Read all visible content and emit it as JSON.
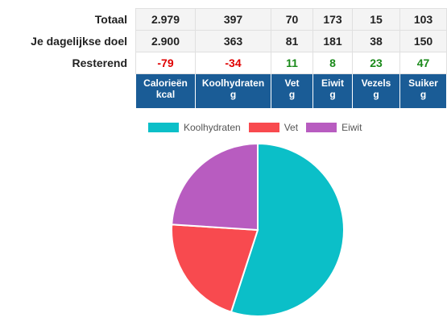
{
  "rows": {
    "total": {
      "label": "Totaal",
      "values": [
        "2.979",
        "397",
        "70",
        "173",
        "15",
        "103"
      ]
    },
    "goal": {
      "label": "Je dagelijkse doel",
      "values": [
        "2.900",
        "363",
        "81",
        "181",
        "38",
        "150"
      ]
    },
    "remaining": {
      "label": "Resterend",
      "values": [
        "-79",
        "-34",
        "11",
        "8",
        "23",
        "47"
      ]
    }
  },
  "headers": [
    {
      "name": "Calorieën",
      "unit": "kcal"
    },
    {
      "name": "Koolhydraten",
      "unit": "g"
    },
    {
      "name": "Vet",
      "unit": "g"
    },
    {
      "name": "Eiwit",
      "unit": "g"
    },
    {
      "name": "Vezels",
      "unit": "g"
    },
    {
      "name": "Suiker",
      "unit": "g"
    }
  ],
  "chart_data": {
    "type": "pie",
    "title": "",
    "categories": [
      "Koolhydraten",
      "Vet",
      "Eiwit"
    ],
    "values": [
      55,
      21,
      24
    ],
    "colors": [
      "#0bbfc8",
      "#f84a4f",
      "#b85cc0"
    ],
    "legend": "top"
  }
}
